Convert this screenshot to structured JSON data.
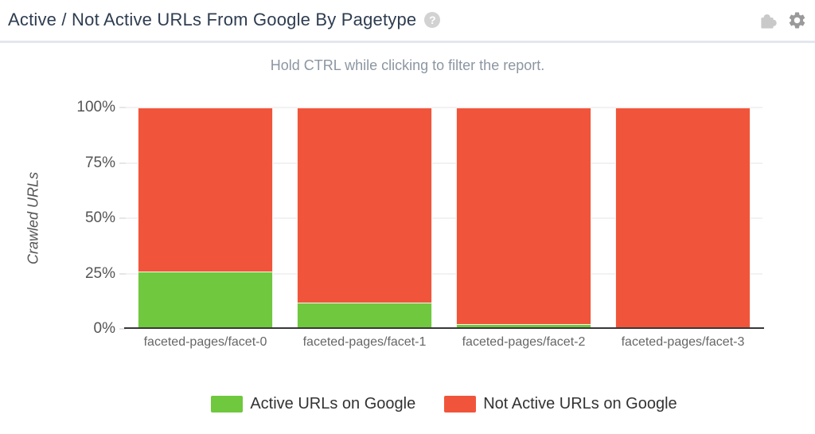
{
  "header": {
    "title": "Active / Not Active URLs From Google By Pagetype",
    "help_glyph": "?",
    "icons": {
      "help": "help-icon",
      "puzzle": "puzzle-icon",
      "settings": "gear-icon"
    }
  },
  "subtitle": "Hold CTRL while clicking to filter the report.",
  "chart_data": {
    "type": "bar",
    "stacked": true,
    "title": "Active / Not Active URLs From Google By Pagetype",
    "xlabel": "",
    "ylabel": "Crawled URLs",
    "ylim": [
      0,
      100
    ],
    "yticks": [
      "0%",
      "25%",
      "50%",
      "75%",
      "100%"
    ],
    "grid": true,
    "legend_position": "bottom",
    "categories": [
      "faceted-pages/facet-0",
      "faceted-pages/facet-1",
      "faceted-pages/facet-2",
      "faceted-pages/facet-3"
    ],
    "series": [
      {
        "name": "Active URLs on Google",
        "color": "#6fc83e",
        "values": [
          26,
          12,
          2,
          0
        ]
      },
      {
        "name": "Not Active URLs on Google",
        "color": "#f0553b",
        "values": [
          74,
          88,
          98,
          100
        ]
      }
    ]
  },
  "colors": {
    "active": "#6fc83e",
    "not_active": "#f0553b",
    "title_text": "#2e3d50",
    "subtitle_text": "#8c96a2",
    "gridline": "#e6e6e6",
    "axis_line": "#383838"
  }
}
